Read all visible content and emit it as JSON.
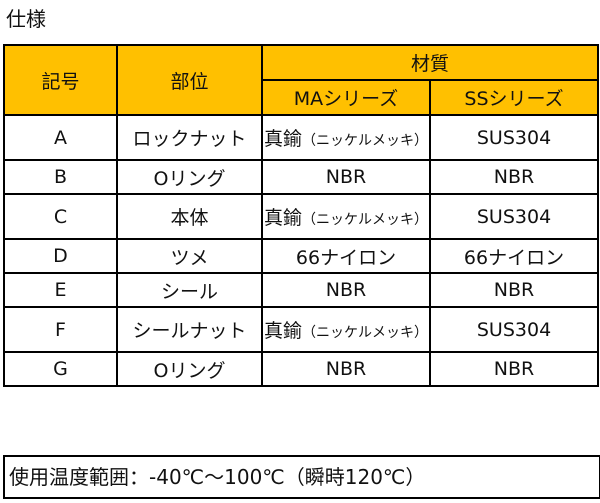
{
  "heading": "仕様",
  "table": {
    "headers": {
      "code": "記号",
      "part": "部位",
      "material": "材質",
      "ma_series": "MAシリーズ",
      "ss_series": "SSシリーズ"
    },
    "rows": [
      {
        "code": "A",
        "part": "ロックナット",
        "ma_main": "真鍮",
        "ma_note": "（ニッケルメッキ）",
        "ss": "SUS304",
        "size": "tall"
      },
      {
        "code": "B",
        "part": "Oリング",
        "ma_main": "NBR",
        "ma_note": "",
        "ss": "NBR",
        "size": "short"
      },
      {
        "code": "C",
        "part": "本体",
        "ma_main": "真鍮",
        "ma_note": "（ニッケルメッキ）",
        "ss": "SUS304",
        "size": "tall"
      },
      {
        "code": "D",
        "part": "ツメ",
        "ma_main": "66ナイロン",
        "ma_note": "",
        "ss": "66ナイロン",
        "size": "short"
      },
      {
        "code": "E",
        "part": "シール",
        "ma_main": "NBR",
        "ma_note": "",
        "ss": "NBR",
        "size": "short"
      },
      {
        "code": "F",
        "part": "シールナット",
        "ma_main": "真鍮",
        "ma_note": "（ニッケルメッキ）",
        "ss": "SUS304",
        "size": "tall"
      },
      {
        "code": "G",
        "part": "Oリング",
        "ma_main": "NBR",
        "ma_note": "",
        "ss": "NBR",
        "size": "short"
      }
    ]
  },
  "footer": "使用温度範囲：-40℃～100℃（瞬時120℃）",
  "colors": {
    "header_bg": "#ffc000",
    "border": "#000000"
  }
}
